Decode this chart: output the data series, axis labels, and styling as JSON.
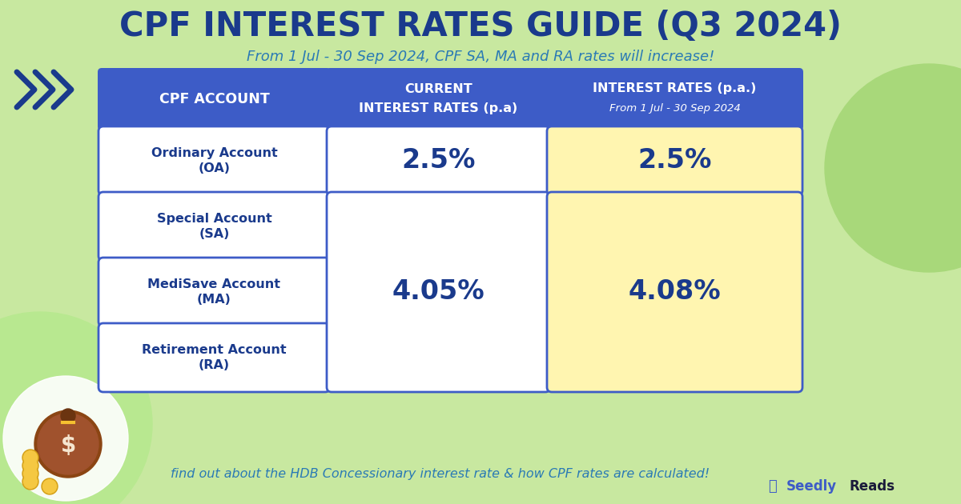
{
  "title": "CPF INTEREST RATES GUIDE (Q3 2024)",
  "subtitle": "From 1 Jul - 30 Sep 2024, CPF SA, MA and RA rates will increase!",
  "bg_color": "#c8e8a0",
  "title_color": "#1a3a8c",
  "subtitle_color": "#2a7ab5",
  "header_bg": "#3d5cc7",
  "header_text_color": "#ffffff",
  "col_headers": [
    "CPF ACCOUNT",
    "CURRENT\nINTEREST RATES (p.a)",
    "INTEREST RATES (p.a.)\nFrom 1 Jul - 30 Sep 2024"
  ],
  "rows": [
    {
      "account": "Ordinary Account\n(OA)",
      "current": "2.5%",
      "new": "2.5%"
    },
    {
      "account": "Special Account\n(SA)",
      "current": null,
      "new": null
    },
    {
      "account": "MediSave Account\n(MA)",
      "current": "4.05%",
      "new": "4.08%"
    },
    {
      "account": "Retirement Account\n(RA)",
      "current": null,
      "new": null
    }
  ],
  "merged_current": "4.05%",
  "merged_new": "4.08%",
  "cell_bg_white": "#ffffff",
  "cell_bg_yellow": "#fff5b0",
  "cell_border_color": "#3d5cc7",
  "row_text_color": "#1a3a8c",
  "footer_text": "find out about the HDB Concessionary interest rate & how CPF rates are calculated!",
  "footer_color": "#2a7ab5",
  "brand_seedly_color": "#3d5cc7",
  "brand_reads_color": "#1a1a3a",
  "arrow_color": "#1a3a8c",
  "circle_color": "#a8d87a",
  "circle_bg_color": "#b8e890"
}
